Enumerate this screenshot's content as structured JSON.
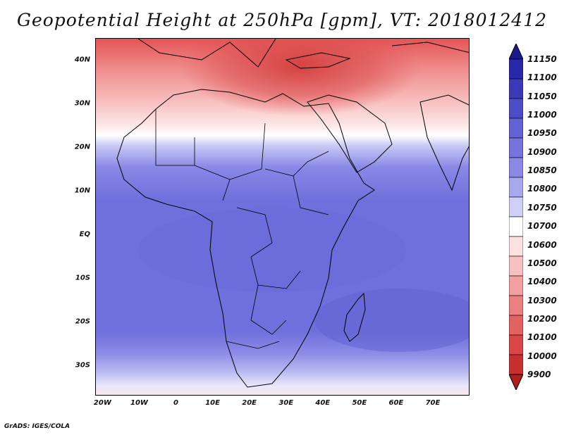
{
  "title": "Geopotential Height at 250hPa [gpm], VT: 2018012412",
  "credit": "GrADS: IGES/COLA",
  "map": {
    "lon_range": [
      -22,
      80
    ],
    "lat_range": [
      -37,
      45
    ],
    "y_ticks": [
      {
        "lat": 40,
        "label": "40N"
      },
      {
        "lat": 30,
        "label": "30N"
      },
      {
        "lat": 20,
        "label": "20N"
      },
      {
        "lat": 10,
        "label": "10N"
      },
      {
        "lat": 0,
        "label": "EQ"
      },
      {
        "lat": -10,
        "label": "10S"
      },
      {
        "lat": -20,
        "label": "20S"
      },
      {
        "lat": -30,
        "label": "30S"
      }
    ],
    "x_ticks": [
      {
        "lon": -20,
        "label": "20W"
      },
      {
        "lon": -10,
        "label": "10W"
      },
      {
        "lon": 0,
        "label": "0"
      },
      {
        "lon": 10,
        "label": "10E"
      },
      {
        "lon": 20,
        "label": "20E"
      },
      {
        "lon": 30,
        "label": "30E"
      },
      {
        "lon": 40,
        "label": "40E"
      },
      {
        "lon": 50,
        "label": "50E"
      },
      {
        "lon": 60,
        "label": "60E"
      },
      {
        "lon": 70,
        "label": "70E"
      }
    ]
  },
  "colorbar": {
    "labels": [
      "11150",
      "11100",
      "11050",
      "11000",
      "10950",
      "10900",
      "10850",
      "10800",
      "10750",
      "10700",
      "10600",
      "10500",
      "10400",
      "10300",
      "10200",
      "10100",
      "10000",
      "9900"
    ],
    "colors": [
      "#1a1a8c",
      "#2828a8",
      "#3a3ab8",
      "#4c4cc6",
      "#6262d2",
      "#7474dc",
      "#8a8ae4",
      "#a8a8ee",
      "#d0d0f6",
      "#ffffff",
      "#fde0e0",
      "#f8c0c0",
      "#f2a0a0",
      "#ea8080",
      "#e26262",
      "#d84646",
      "#c83030",
      "#b01e1e"
    ]
  }
}
